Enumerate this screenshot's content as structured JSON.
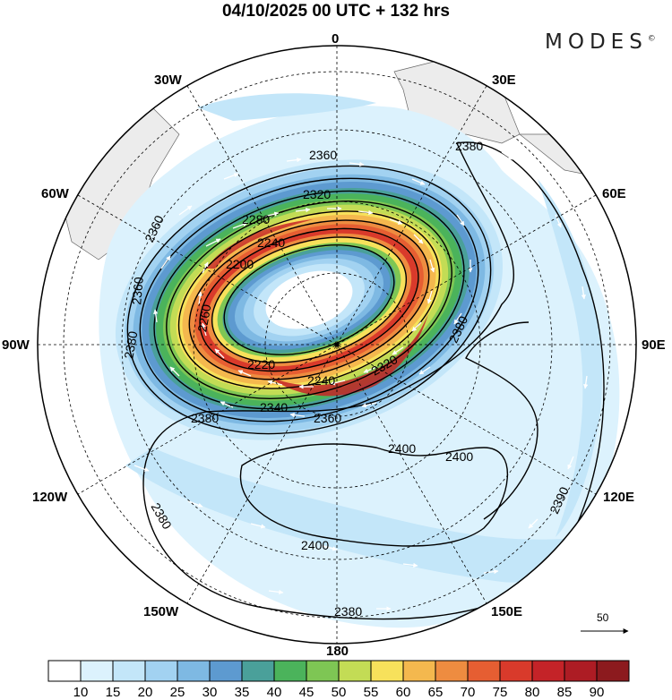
{
  "title": "04/10/2025  00 UTC  + 132 hrs",
  "brand": "MODES",
  "brand_mark": "©",
  "longitude_labels": {
    "top": "0",
    "w30": "30W",
    "e30": "30E",
    "w60": "60W",
    "e60": "60E",
    "w90": "90W",
    "e90": "90E",
    "w120": "120W",
    "e120": "120E",
    "w150": "150W",
    "e150": "150E",
    "bottom": "180"
  },
  "contour_labels": [
    "2360",
    "2320",
    "2240",
    "2280",
    "2200",
    "2360",
    "2260",
    "2360",
    "2220",
    "2240",
    "2320",
    "2340",
    "2360",
    "2380",
    "2380",
    "2380",
    "2400",
    "2400",
    "2400",
    "2380",
    "2380",
    "2390",
    "2380"
  ],
  "reference_vector": {
    "value": "50"
  },
  "colorbar": {
    "ticks": [
      "10",
      "15",
      "20",
      "25",
      "30",
      "35",
      "40",
      "45",
      "50",
      "55",
      "60",
      "65",
      "70",
      "75",
      "80",
      "85",
      "90"
    ],
    "colors": [
      "#ffffff",
      "#dcf2fd",
      "#c3e6f9",
      "#a2d2f1",
      "#7eb9e3",
      "#5d9ad0",
      "#4aa09a",
      "#4bb35b",
      "#7ec654",
      "#c3dc55",
      "#f7e15b",
      "#f4b84e",
      "#ee8c40",
      "#e65e32",
      "#d93a2b",
      "#c42328",
      "#ad1c24",
      "#8c1a1e"
    ]
  },
  "colors": {
    "land": "#ececec",
    "contour": "#000000",
    "grid": "#000000"
  }
}
